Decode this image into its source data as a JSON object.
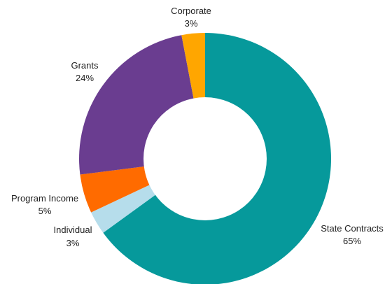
{
  "chart_data": {
    "type": "pie",
    "donut": true,
    "start_angle_deg": 0,
    "direction": "clockwise",
    "slices": [
      {
        "label": "State Contracts",
        "percent_label": "65%",
        "value": 65,
        "color": "#06999B"
      },
      {
        "label": "Individual",
        "percent_label": "3%",
        "value": 3,
        "color": "#B6DDEB"
      },
      {
        "label": "Program Income",
        "percent_label": "5%",
        "value": 5,
        "color": "#FF6B00"
      },
      {
        "label": "Grants",
        "percent_label": "24%",
        "value": 24,
        "color": "#6A3D90"
      },
      {
        "label": "Corporate",
        "percent_label": "3%",
        "value": 3,
        "color": "#FFA600"
      }
    ]
  }
}
